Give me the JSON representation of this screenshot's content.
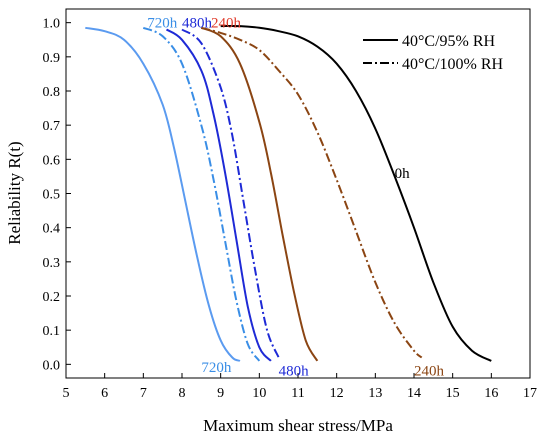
{
  "chart_data": {
    "type": "line",
    "xlabel": "Maximum shear stress/MPa",
    "ylabel": "Reliability R(t)",
    "xlim": [
      5,
      17
    ],
    "ylim": [
      -0.04,
      1.04
    ],
    "xticks": [
      "5",
      "6",
      "7",
      "8",
      "9",
      "10",
      "11",
      "12",
      "13",
      "14",
      "15",
      "16",
      "17"
    ],
    "yticks": [
      "0.0",
      "0.1",
      "0.2",
      "0.3",
      "0.4",
      "0.5",
      "0.6",
      "0.7",
      "0.8",
      "0.9",
      "1.0"
    ],
    "grid": false,
    "legend_position": "top-right",
    "legend": [
      {
        "label": "40°C/95% RH",
        "style": "solid"
      },
      {
        "label": "40°C/100% RH",
        "style": "dash-dot"
      }
    ],
    "series": [
      {
        "label": "0h",
        "style": "solid",
        "color": "#000000",
        "x": [
          9.0,
          9.5,
          10.0,
          10.5,
          11.0,
          11.5,
          12.0,
          12.5,
          13.0,
          13.5,
          14.0,
          14.5,
          15.0,
          15.5,
          16.0
        ],
        "y": [
          0.99,
          0.99,
          0.985,
          0.975,
          0.96,
          0.93,
          0.88,
          0.8,
          0.69,
          0.55,
          0.4,
          0.24,
          0.11,
          0.04,
          0.01
        ]
      },
      {
        "label": "240h",
        "style": "dash-dot",
        "color": "#8B4513",
        "x": [
          8.5,
          9.0,
          9.5,
          10.0,
          10.5,
          11.0,
          11.5,
          12.0,
          12.5,
          13.0,
          13.5,
          14.0,
          14.2
        ],
        "y": [
          0.985,
          0.97,
          0.95,
          0.92,
          0.86,
          0.79,
          0.68,
          0.54,
          0.39,
          0.24,
          0.12,
          0.04,
          0.02
        ]
      },
      {
        "label": "240h",
        "style": "solid",
        "color": "#8B4513",
        "x": [
          8.5,
          9.0,
          9.5,
          10.0,
          10.3,
          10.6,
          10.9,
          11.2,
          11.5
        ],
        "y": [
          0.985,
          0.96,
          0.88,
          0.71,
          0.56,
          0.38,
          0.21,
          0.07,
          0.01
        ]
      },
      {
        "label": "480h",
        "style": "dash-dot",
        "color": "#1E2AD6",
        "x": [
          8.0,
          8.5,
          9.0,
          9.3,
          9.6,
          9.9,
          10.2,
          10.5
        ],
        "y": [
          0.98,
          0.94,
          0.81,
          0.67,
          0.47,
          0.27,
          0.1,
          0.02
        ]
      },
      {
        "label": "480h",
        "style": "solid",
        "color": "#1E2AD6",
        "x": [
          7.6,
          8.0,
          8.5,
          8.8,
          9.1,
          9.4,
          9.7,
          10.0,
          10.3
        ],
        "y": [
          0.98,
          0.95,
          0.86,
          0.74,
          0.57,
          0.37,
          0.17,
          0.05,
          0.01
        ]
      },
      {
        "label": "720h",
        "style": "dash-dot",
        "color": "#3A8EE6",
        "x": [
          7.0,
          7.5,
          8.0,
          8.5,
          8.8,
          9.1,
          9.4,
          9.7,
          10.0
        ],
        "y": [
          0.985,
          0.96,
          0.88,
          0.7,
          0.55,
          0.37,
          0.19,
          0.06,
          0.01
        ]
      },
      {
        "label": "720h",
        "style": "solid",
        "color": "#5B9BF0",
        "x": [
          5.5,
          6.0,
          6.5,
          7.0,
          7.5,
          7.8,
          8.1,
          8.4,
          8.7,
          9.0,
          9.3,
          9.5
        ],
        "y": [
          0.985,
          0.975,
          0.95,
          0.88,
          0.76,
          0.63,
          0.47,
          0.31,
          0.17,
          0.07,
          0.02,
          0.01
        ]
      }
    ],
    "annotations": [
      {
        "text": "0h",
        "color": "#000000"
      },
      {
        "text": "720h",
        "color": "#3A8EE6"
      },
      {
        "text": "480h",
        "color": "#1E2AD6"
      },
      {
        "text": "240h",
        "color": "#E03A2A"
      },
      {
        "text": "720h",
        "color": "#3A8EE6"
      },
      {
        "text": "480h",
        "color": "#1E2AD6"
      },
      {
        "text": "240h",
        "color": "#8B4513"
      }
    ]
  }
}
